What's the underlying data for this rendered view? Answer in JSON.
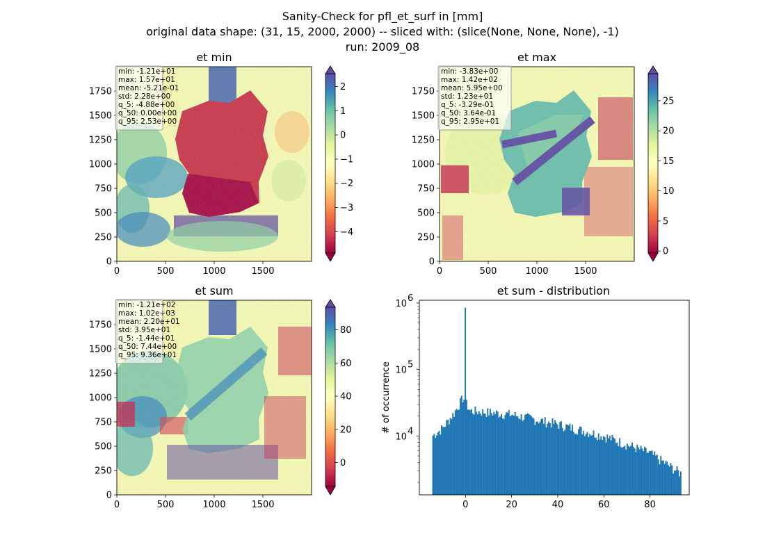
{
  "figure": {
    "title_lines": [
      "Sanity-Check for pfl_et_surf in [mm]",
      "original data shape: (31, 15, 2000, 2000) -- sliced with: (slice(None, None, None), -1)",
      "run: 2009_08"
    ]
  },
  "chart_data": [
    {
      "type": "heatmap",
      "title": "et min",
      "xlim": [
        0,
        2000
      ],
      "ylim": [
        0,
        2000
      ],
      "xticks": [
        0,
        500,
        1000,
        1500
      ],
      "yticks": [
        0,
        250,
        500,
        750,
        1000,
        1250,
        1500,
        1750
      ],
      "colormap": "Spectral",
      "colorbar": {
        "vmin": -4.88,
        "vmax": 2.53,
        "ticks": [
          -4,
          -3,
          -2,
          -1,
          0,
          1,
          2
        ],
        "extend": "both"
      },
      "stats": [
        "min: -1.21e+01",
        "max: 1.57e+01",
        "mean: -5.21e-01",
        "std: 2.28e+00",
        "q_5: -4.88e+00",
        "q_50: 0.00e+00",
        "q_95: 2.53e+00"
      ]
    },
    {
      "type": "heatmap",
      "title": "et max",
      "xlim": [
        0,
        2000
      ],
      "ylim": [
        0,
        2000
      ],
      "xticks": [
        0,
        500,
        1000,
        1500
      ],
      "yticks": [
        0,
        250,
        500,
        750,
        1000,
        1250,
        1500,
        1750
      ],
      "colormap": "Spectral",
      "colorbar": {
        "vmin": -0.329,
        "vmax": 29.5,
        "ticks": [
          0,
          5,
          10,
          15,
          20,
          25
        ],
        "extend": "both"
      },
      "stats": [
        "min: -3.83e+00",
        "max: 1.42e+02",
        "mean: 5.95e+00",
        "std: 1.23e+01",
        "q_5: -3.29e-01",
        "q_50: 3.64e-01",
        "q_95: 2.95e+01"
      ]
    },
    {
      "type": "heatmap",
      "title": "et sum",
      "xlim": [
        0,
        2000
      ],
      "ylim": [
        0,
        2000
      ],
      "xticks": [
        0,
        500,
        1000,
        1500
      ],
      "yticks": [
        0,
        250,
        500,
        750,
        1000,
        1250,
        1500,
        1750
      ],
      "colormap": "Spectral",
      "colorbar": {
        "vmin": -14.4,
        "vmax": 93.6,
        "ticks": [
          0,
          20,
          40,
          60,
          80
        ],
        "extend": "both"
      },
      "stats": [
        "min: -1.21e+02",
        "max: 1.02e+03",
        "mean: 2.20e+01",
        "std: 3.95e+01",
        "q_5: -1.44e+01",
        "q_50: 7.44e+00",
        "q_95: 9.36e+01"
      ]
    },
    {
      "type": "bar",
      "title": "et sum - distribution",
      "ylabel": "# of occurrence",
      "yscale": "log",
      "xlim": [
        -20,
        97
      ],
      "ylim": [
        1300,
        1100000
      ],
      "xticks": [
        0,
        20,
        40,
        60,
        80
      ],
      "yticks": [
        10000,
        100000,
        1000000
      ],
      "yticklabels": [
        [
          "10",
          "4"
        ],
        [
          "10",
          "5"
        ],
        [
          "10",
          "6"
        ]
      ],
      "color": "#1f77b4",
      "bin_range": [
        -14.4,
        93.6
      ],
      "bin_count": 200,
      "peak": {
        "x": 0,
        "value": 850000
      },
      "profile": [
        {
          "x": -14.4,
          "value": 10000
        },
        {
          "x": -10,
          "value": 13000
        },
        {
          "x": -5,
          "value": 22000
        },
        {
          "x": -1,
          "value": 38000
        },
        {
          "x": 0.5,
          "value": 30000
        },
        {
          "x": 2,
          "value": 24000
        },
        {
          "x": 20,
          "value": 21000
        },
        {
          "x": 40,
          "value": 15000
        },
        {
          "x": 60,
          "value": 10000
        },
        {
          "x": 80,
          "value": 5500
        },
        {
          "x": 93.6,
          "value": 2700
        }
      ]
    }
  ]
}
